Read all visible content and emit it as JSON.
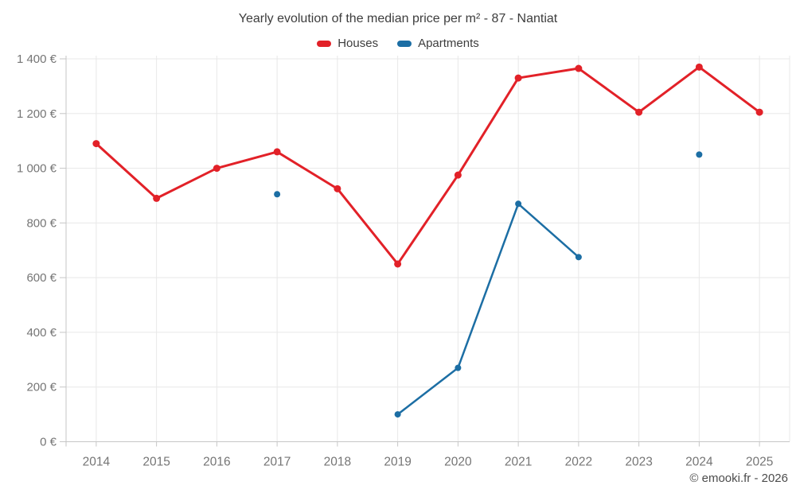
{
  "title": "Yearly evolution of the median price per m² - 87 - Nantiat",
  "legend": {
    "items": [
      {
        "label": "Houses",
        "color": "#e22128"
      },
      {
        "label": "Apartments",
        "color": "#1c6ea4"
      }
    ]
  },
  "footer": {
    "credit": "© emooki.fr - 2026"
  },
  "colors": {
    "grid": "#e8e8e8",
    "axis": "#c6c6c6",
    "tick_label": "#757575",
    "title_text": "#3d3d3d",
    "footer_text": "#4c4c4c"
  },
  "chart_data": {
    "type": "line",
    "title": "Yearly evolution of the median price per m² - 87 - Nantiat",
    "categories": [
      "2014",
      "2015",
      "2016",
      "2017",
      "2018",
      "2019",
      "2020",
      "2021",
      "2022",
      "2023",
      "2024",
      "2025"
    ],
    "series": [
      {
        "name": "Houses",
        "color": "#e22128",
        "line_width": 3,
        "marker_radius": 4.5,
        "values": [
          1090,
          890,
          1000,
          1060,
          925,
          650,
          975,
          1330,
          1365,
          1205,
          1370,
          1205
        ]
      },
      {
        "name": "Apartments",
        "color": "#1c6ea4",
        "line_width": 2.5,
        "marker_radius": 4,
        "values": [
          null,
          null,
          null,
          905,
          null,
          100,
          270,
          870,
          675,
          null,
          1050,
          null
        ]
      }
    ],
    "xlabel": "",
    "ylabel": "",
    "unit": "€",
    "ylim": [
      0,
      1400
    ],
    "ytick_step": 200,
    "ytick_labels": [
      "0 €",
      "200 €",
      "400 €",
      "600 €",
      "800 €",
      "1 000 €",
      "1 200 €",
      "1 400 €"
    ],
    "grid": true,
    "legend_position": "top"
  }
}
